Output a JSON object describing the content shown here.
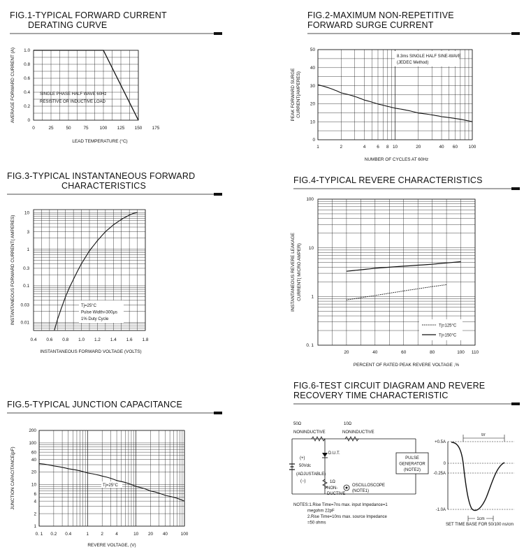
{
  "chart_data": [
    {
      "id": "fig1",
      "type": "line",
      "title_lines": [
        "FIG.1-TYPICAL FORWARD CURRENT",
        "DERATING CURVE"
      ],
      "xlabel": "LEAD TEMPERATURE (°C)",
      "ylabel": "AVERAGE FORWARD CURRENT (A)",
      "x_ticks": [
        "0",
        "25",
        "50",
        "75",
        "100",
        "125",
        "150",
        "175"
      ],
      "y_ticks": [
        "0",
        "0.2",
        "0.4",
        "0.6",
        "0.8",
        "1.0"
      ],
      "xlim": [
        0,
        175
      ],
      "ylim": [
        0,
        1.0
      ],
      "annotation_lines": [
        "SINGLE PHASE HALF WAVE 60Hz",
        "RESISTIVE OR INDUCTIVE LOAD"
      ],
      "series": [
        {
          "name": "derating",
          "x": [
            0,
            100,
            150
          ],
          "y": [
            1.0,
            1.0,
            0
          ]
        }
      ]
    },
    {
      "id": "fig2",
      "type": "line",
      "title_lines": [
        "FIG.2-MAXIMUM NON-REPETITIVE",
        "FORWARD SURGE CURRENT"
      ],
      "xlabel": "NUMBER OF CYCLES AT 60Hz",
      "ylabel_lines": [
        "PEAK FORWARD SURGE",
        "CURRENT(AMPERES)"
      ],
      "x_ticks": [
        "1",
        "2",
        "4",
        "6",
        "8",
        "10",
        "20",
        "40",
        "60",
        "100"
      ],
      "y_ticks": [
        "0",
        "10",
        "20",
        "30",
        "40",
        "50"
      ],
      "xscale": "log",
      "xlim": [
        1,
        100
      ],
      "ylim": [
        0,
        50
      ],
      "annotation_lines": [
        "8.3ms SINGLE HALF SINE-WAVE",
        "(JEDEC Method)"
      ],
      "series": [
        {
          "name": "surge",
          "x": [
            1,
            2,
            4,
            6,
            8,
            10,
            20,
            40,
            60,
            100
          ],
          "y": [
            30.5,
            26,
            22,
            19.8,
            18.5,
            17.5,
            14.8,
            12.8,
            11.8,
            10
          ]
        }
      ]
    },
    {
      "id": "fig3",
      "type": "line",
      "title_lines": [
        "FIG.3-TYPICAL INSTANTANEOUS FORWARD",
        "CHARACTERISTICS"
      ],
      "xlabel": "INSTANTANEOUS FORWARD VOLTAGE (VOLTS)",
      "ylabel": "INSTANTANEOUS FORWARD CURRENT( AMPERES)",
      "x_ticks": [
        "0.4",
        "0.6",
        "0.8",
        "1.0",
        "1.2",
        "1.4",
        "1.6",
        "1.8"
      ],
      "y_ticks": [
        "0.01",
        "0.03",
        "0.1",
        "0.3",
        "1",
        "3",
        "10"
      ],
      "yscale": "log",
      "xlim": [
        0.4,
        1.8
      ],
      "ylim": [
        0.006,
        12
      ],
      "annotation_lines": [
        "Tj=25°C",
        "Pulse Width=300μs",
        "1% Duty Cycle"
      ],
      "series": [
        {
          "name": "vf",
          "x": [
            0.66,
            0.7,
            0.75,
            0.8,
            0.85,
            0.9,
            0.95,
            1.0,
            1.1,
            1.2,
            1.3,
            1.4,
            1.5,
            1.6,
            1.65,
            1.7
          ],
          "y": [
            0.006,
            0.012,
            0.025,
            0.05,
            0.09,
            0.15,
            0.25,
            0.4,
            0.9,
            1.7,
            3,
            4.6,
            6.5,
            8.5,
            9.5,
            10
          ]
        }
      ]
    },
    {
      "id": "fig4",
      "type": "line",
      "title_lines": [
        "FIG.4-TYPICAL REVERE CHARACTERISTICS"
      ],
      "xlabel": "PERCENT OF RATED PEAK REVERE VOLTAGE ,%",
      "ylabel_lines": [
        "INSTANTANEOUS REVERE LEAKAGE",
        "CURRENT( MICRO AMPER)"
      ],
      "x_ticks": [
        "0",
        "20",
        "40",
        "60",
        "80",
        "100",
        "110"
      ],
      "y_ticks": [
        "0. 1",
        "1",
        "10",
        "100"
      ],
      "yscale": "log",
      "xlim": [
        0,
        110
      ],
      "ylim": [
        0.1,
        100
      ],
      "legend": [
        "Tj=125°C",
        "Tj=150°C"
      ],
      "series": [
        {
          "name": "Tj=125°C",
          "style": "dotted",
          "x": [
            20,
            40,
            60,
            80,
            90
          ],
          "y": [
            0.85,
            1.05,
            1.3,
            1.6,
            1.75
          ]
        },
        {
          "name": "Tj=150°C",
          "style": "solid",
          "x": [
            20,
            40,
            60,
            80,
            100
          ],
          "y": [
            3.3,
            3.8,
            4.2,
            4.6,
            5.2
          ]
        }
      ]
    },
    {
      "id": "fig5",
      "type": "line",
      "title_lines": [
        "FIG.5-TYPICAL JUNCTION CAPACITANCE"
      ],
      "xlabel": "REVERE VOLTAGE, (V)",
      "ylabel": "JUNCTION CAPACITANCE(pF)",
      "x_ticks": [
        "0. 1",
        "0.2",
        "0.4",
        "1",
        "2",
        "4",
        "10",
        "20",
        "40",
        "100"
      ],
      "y_ticks": [
        "1",
        "2",
        "4",
        "6",
        "10",
        "20",
        "40",
        "60",
        "100",
        "200"
      ],
      "xscale": "log",
      "yscale": "log",
      "xlim": [
        0.1,
        100
      ],
      "ylim": [
        1,
        200
      ],
      "annotation_lines": [
        "Tj=25°C"
      ],
      "series": [
        {
          "name": "cj",
          "x": [
            0.1,
            0.2,
            0.4,
            1,
            2,
            4,
            10,
            20,
            40,
            100
          ],
          "y": [
            32,
            28,
            24,
            19,
            16,
            12.5,
            9,
            7,
            5.5,
            4
          ]
        }
      ]
    },
    {
      "id": "fig6",
      "type": "line",
      "title_lines": [
        "FIG.6-TEST CIRCUIT DIAGRAM AND REVERE",
        "RECOVERY TIME CHARACTERISTIC"
      ],
      "y_ticks": [
        "+0.5A",
        "0",
        "-0.25A",
        "-1.0A"
      ],
      "trr_label": "trr",
      "time_base": "SET TIME BASE FOR 50/100 ns/cm",
      "scale_label": "1cm"
    }
  ],
  "circuit": {
    "r50": "50Ω",
    "noninductive_left": "NONINDUCTIVE",
    "r10": "10Ω",
    "noninductive_right": "NONINDUCTIVE",
    "dut": "D.U.T.",
    "plus": "(+)",
    "vdc": "50Vdc",
    "adjustable": "(ADJUSTABLE)",
    "minus": "(−)",
    "r1": "1Ω",
    "non_ductive_lines": [
      "NON-",
      "DUCTIVE"
    ],
    "scope_lines": [
      "OSCILLOSCOPE",
      "(NOTE1)"
    ],
    "pulse_lines": [
      "PULSE",
      "GENERATOR",
      "(NOTE2)"
    ],
    "notes": [
      "NOTES:1.Rise Time=7ns max. input Impedance=1",
      "megohm 22pF",
      "2.Rise Time=10ns max. source Impedance",
      "=50 ohms"
    ]
  }
}
